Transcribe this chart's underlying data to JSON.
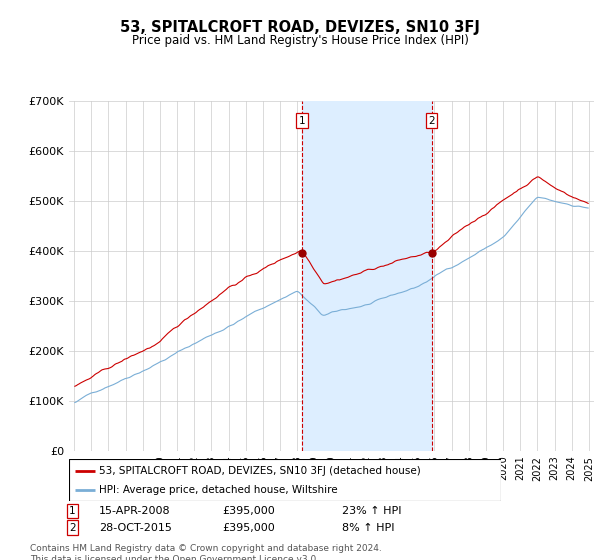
{
  "title": "53, SPITALCROFT ROAD, DEVIZES, SN10 3FJ",
  "subtitle": "Price paid vs. HM Land Registry's House Price Index (HPI)",
  "ylabel_ticks": [
    "£0",
    "£100K",
    "£200K",
    "£300K",
    "£400K",
    "£500K",
    "£600K",
    "£700K"
  ],
  "ytick_values": [
    0,
    100000,
    200000,
    300000,
    400000,
    500000,
    600000,
    700000
  ],
  "ylim": [
    0,
    700000
  ],
  "sale1": {
    "date": "15-APR-2008",
    "price": 395000,
    "label": "1",
    "hpi_pct": "23% ↑ HPI"
  },
  "sale2": {
    "date": "28-OCT-2015",
    "price": 395000,
    "label": "2",
    "hpi_pct": "8% ↑ HPI"
  },
  "legend_line1": "53, SPITALCROFT ROAD, DEVIZES, SN10 3FJ (detached house)",
  "legend_line2": "HPI: Average price, detached house, Wiltshire",
  "footer": "Contains HM Land Registry data © Crown copyright and database right 2024.\nThis data is licensed under the Open Government Licence v3.0.",
  "line_color_red": "#cc0000",
  "line_color_blue": "#7aaed6",
  "shade_color": "#ddeeff",
  "sale_marker_color": "#990000",
  "vline_color": "#cc0000",
  "grid_color": "#cccccc",
  "background_color": "#ffffff",
  "sale1_x": 2008.29,
  "sale2_x": 2015.83,
  "xlim_left": 1994.7,
  "xlim_right": 2025.3
}
